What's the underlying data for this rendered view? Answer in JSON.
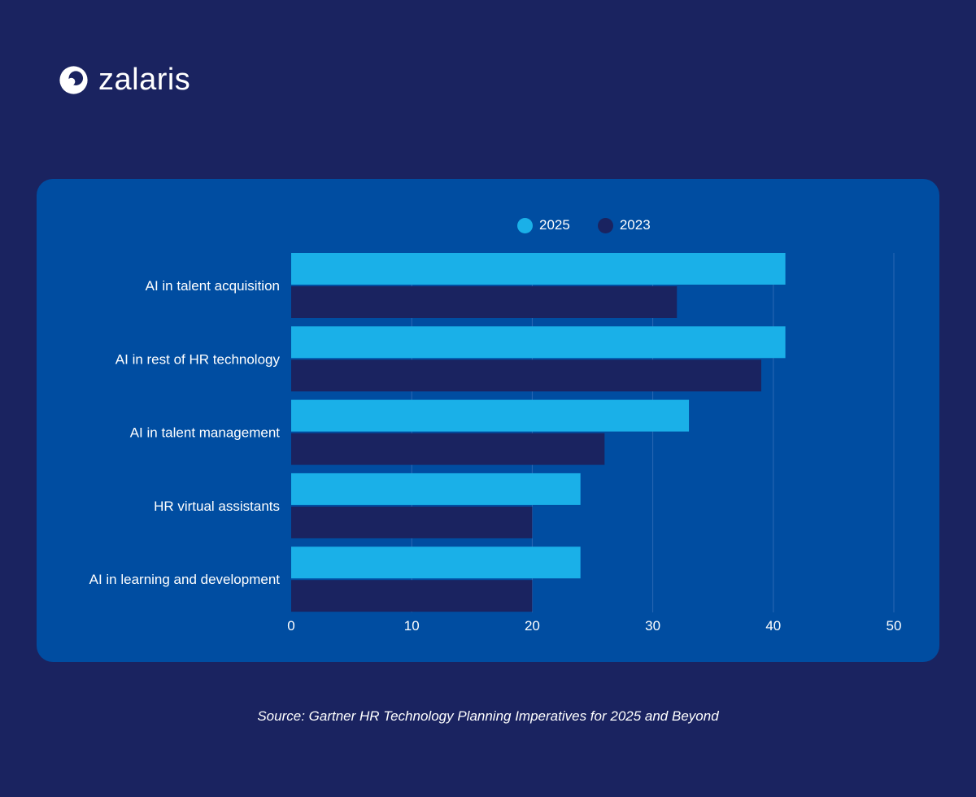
{
  "brand": {
    "name": "zalaris",
    "logo_icon": "swirl-logo-icon"
  },
  "colors": {
    "background": "#1a2360",
    "card": "#004da1",
    "series_2025": "#1ab0e8",
    "series_2023": "#1a2360",
    "gridline": "#2a68b3"
  },
  "source": "Source: Gartner HR Technology Planning Imperatives for 2025 and Beyond",
  "chart_data": {
    "type": "bar",
    "orientation": "horizontal",
    "categories": [
      "AI in talent acquisition",
      "AI in rest of HR technology",
      "AI in talent management",
      "HR virtual assistants",
      "AI in learning and development"
    ],
    "series": [
      {
        "name": "2025",
        "color": "#1ab0e8",
        "values": [
          41,
          41,
          33,
          24,
          24
        ]
      },
      {
        "name": "2023",
        "color": "#1a2360",
        "values": [
          32,
          39,
          26,
          20,
          20
        ]
      }
    ],
    "x_ticks": [
      "0",
      "10",
      "20",
      "30",
      "40",
      "50"
    ],
    "xlim": [
      0,
      50
    ],
    "grid": true,
    "legend_position": "top-center"
  }
}
